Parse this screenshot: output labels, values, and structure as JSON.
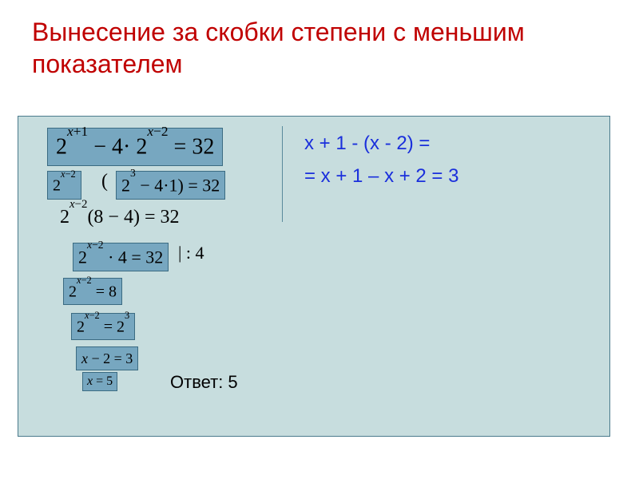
{
  "title": "Вынесение за скобки степени с меньшим показателем",
  "colors": {
    "title": "#c00000",
    "box_bg": "#c7ddde",
    "box_border": "#4a7a8c",
    "eq_bg": "#77a7c0",
    "eq_border": "#3b6b82",
    "side_text": "#1a2fdc"
  },
  "main_equation": {
    "base1": "2",
    "exp1": "x+1",
    "minus": " − 4·",
    "base2": "2",
    "exp2": "x−2",
    "eq_rhs": " = 32"
  },
  "step2a": {
    "base": "2",
    "exp": "x−2"
  },
  "paren_open": "(",
  "step2b": {
    "base": "2",
    "exp": "3",
    "rest": " − 4·1) = 32"
  },
  "step3": {
    "base": "2",
    "exp": "x−2",
    "rest": "(8 − 4) = 32"
  },
  "step4": {
    "base": "2",
    "exp": "x−2",
    "rest": " · 4 = 32"
  },
  "div4": "| : 4",
  "step5": {
    "base": "2",
    "exp": "x−2",
    "rest": " = 8"
  },
  "step6": {
    "base": "2",
    "exp": "x−2",
    "eqbase": "2",
    "eqexp": "3"
  },
  "step7": "x − 2 = 3",
  "step8": "x = 5",
  "answer": "Ответ: 5",
  "side": {
    "line1": "x + 1 - (x - 2) =",
    "line2": "= x + 1 – x + 2 = 3"
  }
}
